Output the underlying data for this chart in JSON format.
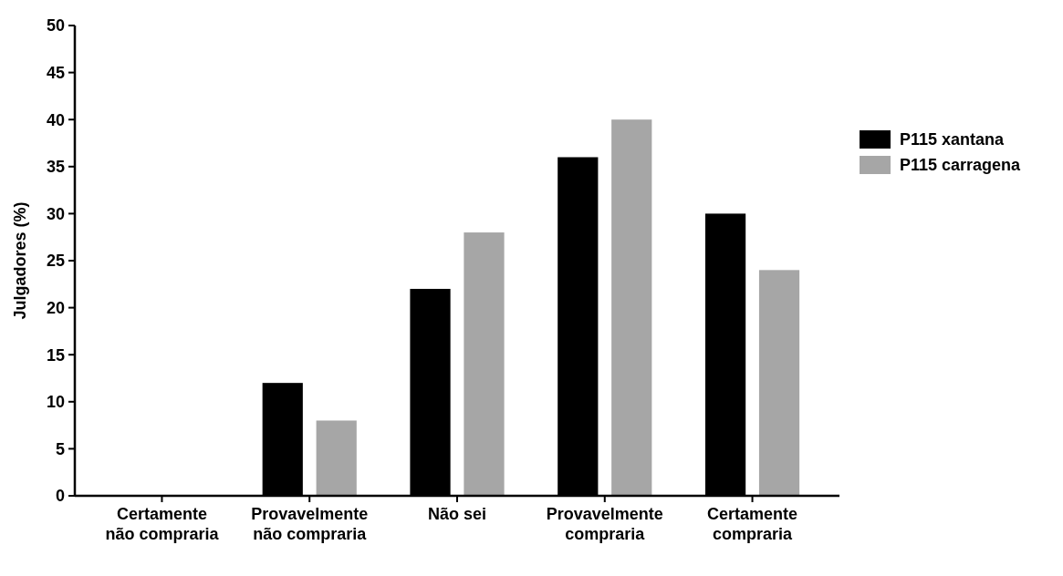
{
  "chart_data": {
    "type": "bar",
    "ylabel": "Julgadores (%)",
    "categories": [
      "Certamente não compraria",
      "Provavelmente não compraria",
      "Não sei",
      "Provavelmente compraria",
      "Certamente compraria"
    ],
    "series": [
      {
        "name": "P115 xantana",
        "color": "#000000",
        "values": [
          0,
          12,
          22,
          36,
          30
        ]
      },
      {
        "name": "P115 carragena",
        "color": "#a6a6a6",
        "values": [
          0,
          8,
          28,
          40,
          24
        ]
      }
    ],
    "ylim": [
      0,
      50
    ],
    "yticks": [
      0,
      5,
      10,
      15,
      20,
      25,
      30,
      35,
      40,
      45,
      50
    ],
    "grid": false,
    "legend": "right"
  }
}
